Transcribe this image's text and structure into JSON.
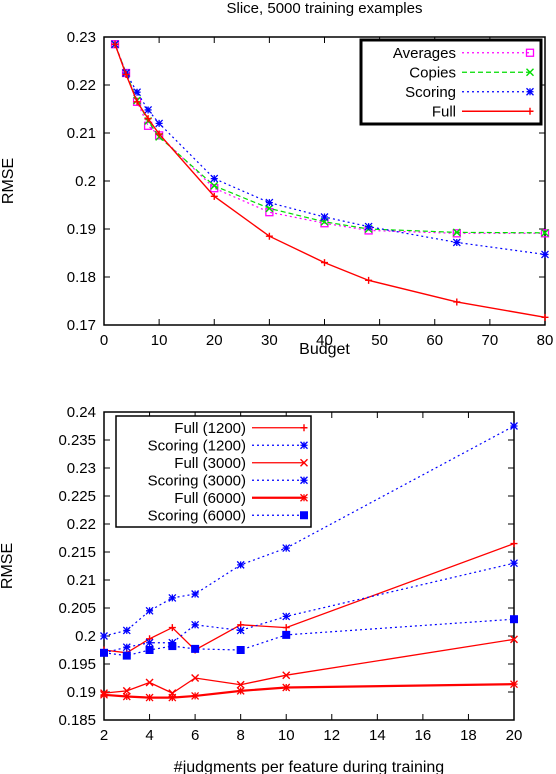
{
  "chart_data": [
    {
      "type": "line",
      "title": "Slice, 5000 training examples",
      "xlabel": "Budget",
      "ylabel": "RMSE",
      "xlim": [
        0,
        80
      ],
      "ylim": [
        0.17,
        0.23
      ],
      "xticks": [
        0,
        10,
        20,
        30,
        40,
        50,
        60,
        70,
        80
      ],
      "yticks": [
        0.17,
        0.18,
        0.19,
        0.2,
        0.21,
        0.22,
        0.23
      ],
      "xtick_labels": [
        "0",
        "10",
        "20",
        "30",
        "40",
        "50",
        "60",
        "70",
        "80"
      ],
      "ytick_labels": [
        "0.17",
        "0.18",
        "0.19",
        "0.2",
        "0.21",
        "0.22",
        "0.23"
      ],
      "grid": false,
      "legend_position": "top-right",
      "series": [
        {
          "name": "Averages",
          "color": "#ff00ff",
          "dash": "dotted",
          "marker": "square-open",
          "width": 1.2,
          "x": [
            2,
            4,
            6,
            8,
            10,
            20,
            30,
            40,
            48,
            64,
            80
          ],
          "y": [
            0.2285,
            0.2225,
            0.2165,
            0.2115,
            0.2095,
            0.1985,
            0.1935,
            0.1912,
            0.1897,
            0.1891,
            0.1891
          ]
        },
        {
          "name": "Copies",
          "color": "#00dd00",
          "dash": "dashed",
          "marker": "cross",
          "width": 1.2,
          "x": [
            2,
            4,
            6,
            8,
            10,
            20,
            30,
            40,
            48,
            64,
            80
          ],
          "y": [
            0.2285,
            0.2225,
            0.2168,
            0.2125,
            0.2092,
            0.199,
            0.1943,
            0.1915,
            0.19,
            0.1893,
            0.1892
          ]
        },
        {
          "name": "Scoring",
          "color": "#0000ff",
          "dash": "dotted",
          "marker": "star",
          "width": 1.2,
          "x": [
            2,
            4,
            6,
            8,
            10,
            20,
            30,
            40,
            48,
            64,
            80
          ],
          "y": [
            0.2285,
            0.2225,
            0.2185,
            0.2148,
            0.212,
            0.2005,
            0.1955,
            0.1925,
            0.1905,
            0.1872,
            0.1847
          ]
        },
        {
          "name": "Full",
          "color": "#ff0000",
          "dash": "solid",
          "marker": "plus",
          "width": 1.4,
          "x": [
            2,
            4,
            6,
            8,
            10,
            20,
            30,
            40,
            48,
            64,
            80
          ],
          "y": [
            0.2285,
            0.2222,
            0.2165,
            0.213,
            0.2098,
            0.1968,
            0.1885,
            0.183,
            0.1793,
            0.1748,
            0.1716
          ]
        }
      ]
    },
    {
      "type": "line",
      "title": "",
      "xlabel": "#judgments per feature during training",
      "ylabel": "RMSE",
      "xlim": [
        2,
        20
      ],
      "ylim": [
        0.185,
        0.24
      ],
      "xticks": [
        2,
        4,
        6,
        8,
        10,
        12,
        14,
        16,
        18,
        20
      ],
      "yticks": [
        0.185,
        0.19,
        0.195,
        0.2,
        0.205,
        0.21,
        0.215,
        0.22,
        0.225,
        0.23,
        0.235,
        0.24
      ],
      "xtick_labels": [
        "2",
        "4",
        "6",
        "8",
        "10",
        "12",
        "14",
        "16",
        "18",
        "20"
      ],
      "ytick_labels": [
        "0.185",
        "0.19",
        "0.195",
        "0.2",
        "0.205",
        "0.21",
        "0.215",
        "0.22",
        "0.225",
        "0.23",
        "0.235",
        "0.24"
      ],
      "grid": false,
      "legend_position": "top-left",
      "series": [
        {
          "name": "Full (1200)",
          "color": "#ff0000",
          "dash": "solid",
          "marker": "plus",
          "width": 1.3,
          "x": [
            2,
            3,
            4,
            5,
            6,
            8,
            10,
            20
          ],
          "y": [
            0.1975,
            0.197,
            0.1995,
            0.2015,
            0.1975,
            0.202,
            0.2015,
            0.2165
          ]
        },
        {
          "name": "Scoring (1200)",
          "color": "#0000ff",
          "dash": "dotted",
          "marker": "star",
          "width": 1.2,
          "x": [
            2,
            3,
            4,
            5,
            6,
            8,
            10,
            20
          ],
          "y": [
            0.2,
            0.201,
            0.2045,
            0.2068,
            0.2075,
            0.2127,
            0.2157,
            0.2375
          ]
        },
        {
          "name": "Full (3000)",
          "color": "#ff0000",
          "dash": "solid",
          "marker": "cross",
          "width": 1.3,
          "x": [
            2,
            3,
            4,
            5,
            6,
            8,
            10,
            20
          ],
          "y": [
            0.1898,
            0.1902,
            0.1917,
            0.1898,
            0.1925,
            0.1913,
            0.193,
            0.1994
          ]
        },
        {
          "name": "Scoring (3000)",
          "color": "#0000ff",
          "dash": "dotted",
          "marker": "star",
          "width": 1.2,
          "x": [
            2,
            3,
            4,
            5,
            6,
            8,
            10,
            20
          ],
          "y": [
            0.197,
            0.198,
            0.1988,
            0.1988,
            0.202,
            0.201,
            0.2035,
            0.213
          ]
        },
        {
          "name": "Full (6000)",
          "color": "#ff0000",
          "dash": "solid",
          "marker": "star",
          "width": 2.2,
          "x": [
            2,
            3,
            4,
            5,
            6,
            8,
            10,
            20
          ],
          "y": [
            0.1895,
            0.1892,
            0.189,
            0.189,
            0.1893,
            0.1902,
            0.1908,
            0.1914
          ]
        },
        {
          "name": "Scoring (6000)",
          "color": "#0000ff",
          "dash": "dotted",
          "marker": "square",
          "width": 1.2,
          "x": [
            2,
            3,
            4,
            5,
            6,
            8,
            10,
            20
          ],
          "y": [
            0.197,
            0.1965,
            0.1975,
            0.1982,
            0.1977,
            0.1975,
            0.2002,
            0.203
          ]
        }
      ]
    }
  ]
}
